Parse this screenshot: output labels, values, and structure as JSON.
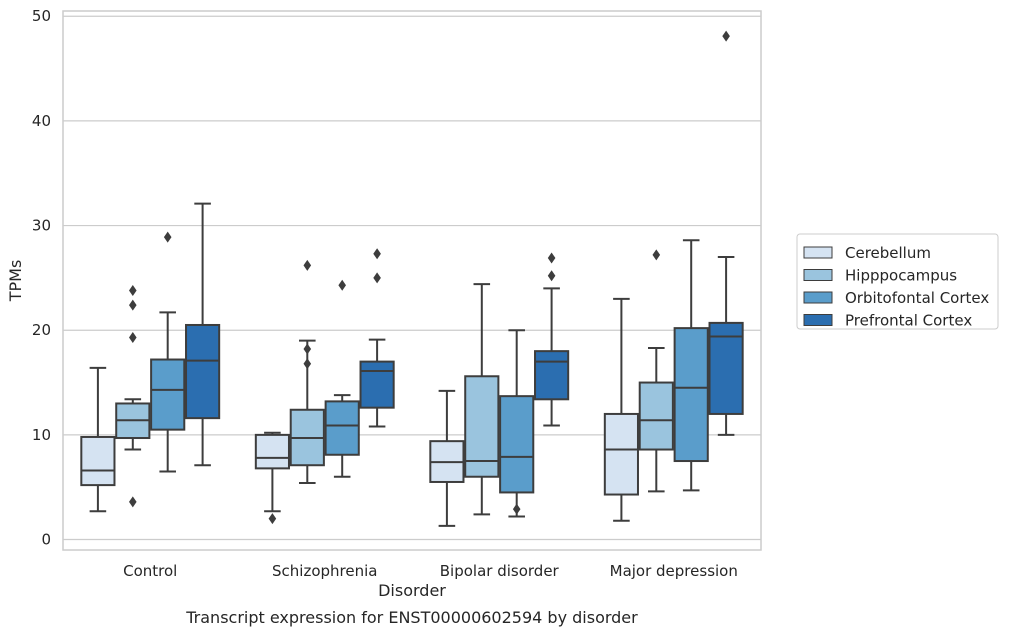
{
  "chart_data": {
    "type": "box",
    "categories": [
      "Control",
      "Schizophrenia",
      "Bipolar disorder",
      "Major depression"
    ],
    "xlabel": "Disorder",
    "ylabel": "TPMs",
    "caption": "Transcript expression for ENST00000602594 by disorder",
    "ylim": [
      -1,
      50.5
    ],
    "yticks": [
      0,
      10,
      20,
      30,
      40,
      50
    ],
    "grid": true,
    "legend_position": "right",
    "series": [
      {
        "name": "Cerebellum",
        "color": "#d5e3f2",
        "boxes": [
          {
            "whisker_low": 2.7,
            "q1": 5.2,
            "median": 6.6,
            "q3": 9.8,
            "whisker_high": 16.4,
            "outliers": []
          },
          {
            "whisker_low": 2.7,
            "q1": 6.8,
            "median": 7.8,
            "q3": 10.0,
            "whisker_high": 10.2,
            "outliers": [
              2.0
            ]
          },
          {
            "whisker_low": 1.3,
            "q1": 5.5,
            "median": 7.4,
            "q3": 9.4,
            "whisker_high": 14.2,
            "outliers": []
          },
          {
            "whisker_low": 1.8,
            "q1": 4.3,
            "median": 8.6,
            "q3": 12.0,
            "whisker_high": 23.0,
            "outliers": []
          }
        ]
      },
      {
        "name": "Hipppocampus",
        "color": "#9ac4de",
        "boxes": [
          {
            "whisker_low": 8.6,
            "q1": 9.7,
            "median": 11.4,
            "q3": 13.0,
            "whisker_high": 13.4,
            "outliers": [
              23.8,
              22.4,
              19.3,
              3.6
            ]
          },
          {
            "whisker_low": 5.4,
            "q1": 7.1,
            "median": 9.7,
            "q3": 12.4,
            "whisker_high": 19.0,
            "outliers": [
              26.2,
              18.2,
              16.8
            ]
          },
          {
            "whisker_low": 2.4,
            "q1": 6.0,
            "median": 7.5,
            "q3": 15.6,
            "whisker_high": 24.4,
            "outliers": []
          },
          {
            "whisker_low": 4.6,
            "q1": 8.6,
            "median": 11.4,
            "q3": 15.0,
            "whisker_high": 18.3,
            "outliers": [
              27.2
            ]
          }
        ]
      },
      {
        "name": "Orbitofontal Cortex",
        "color": "#5a9dcb",
        "boxes": [
          {
            "whisker_low": 6.5,
            "q1": 10.5,
            "median": 14.3,
            "q3": 17.2,
            "whisker_high": 21.7,
            "outliers": [
              28.9
            ]
          },
          {
            "whisker_low": 6.0,
            "q1": 8.1,
            "median": 10.9,
            "q3": 13.2,
            "whisker_high": 13.8,
            "outliers": [
              24.3
            ]
          },
          {
            "whisker_low": 2.2,
            "q1": 4.5,
            "median": 7.9,
            "q3": 13.7,
            "whisker_high": 20.0,
            "outliers": [
              2.9
            ]
          },
          {
            "whisker_low": 4.7,
            "q1": 7.5,
            "median": 14.5,
            "q3": 20.2,
            "whisker_high": 28.6,
            "outliers": []
          }
        ]
      },
      {
        "name": "Prefrontal Cortex",
        "color": "#2b6eb0",
        "boxes": [
          {
            "whisker_low": 7.1,
            "q1": 11.6,
            "median": 17.1,
            "q3": 20.5,
            "whisker_high": 32.1,
            "outliers": []
          },
          {
            "whisker_low": 10.8,
            "q1": 12.6,
            "median": 16.1,
            "q3": 17.0,
            "whisker_high": 19.1,
            "outliers": [
              27.3,
              25.0
            ]
          },
          {
            "whisker_low": 10.9,
            "q1": 13.4,
            "median": 17.0,
            "q3": 18.0,
            "whisker_high": 24.0,
            "outliers": [
              26.9,
              25.2
            ]
          },
          {
            "whisker_low": 10.0,
            "q1": 12.0,
            "median": 19.4,
            "q3": 20.7,
            "whisker_high": 27.0,
            "outliers": [
              48.1
            ]
          }
        ]
      }
    ]
  }
}
